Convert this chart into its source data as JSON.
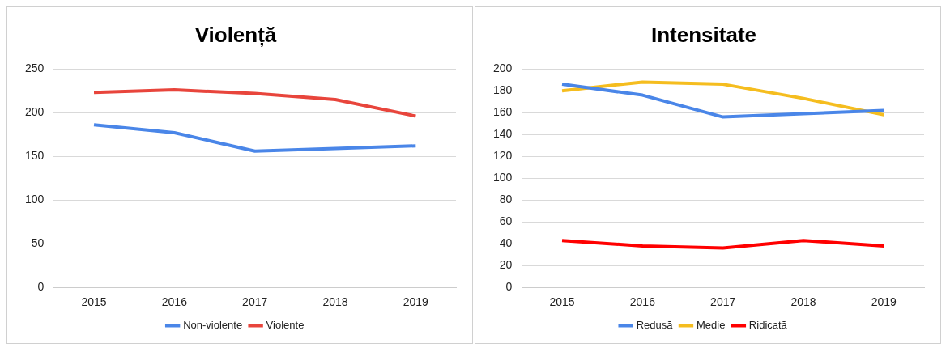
{
  "chart_data": [
    {
      "type": "line",
      "title": "Violență",
      "categories": [
        "2015",
        "2016",
        "2017",
        "2018",
        "2019"
      ],
      "ylim": [
        0,
        250
      ],
      "yticks": [
        0,
        50,
        100,
        150,
        200,
        250
      ],
      "grid": "y",
      "legend": "bottom",
      "marker": "none",
      "series": [
        {
          "name": "Non-violente",
          "color": "#4a86e8",
          "values": [
            186,
            177,
            156,
            159,
            162
          ]
        },
        {
          "name": "Violente",
          "color": "#e8453c",
          "values": [
            223,
            226,
            222,
            215,
            196
          ]
        }
      ]
    },
    {
      "type": "line",
      "title": "Intensitate",
      "categories": [
        "2015",
        "2016",
        "2017",
        "2018",
        "2019"
      ],
      "ylim": [
        0,
        200
      ],
      "yticks": [
        0,
        20,
        40,
        60,
        80,
        100,
        120,
        140,
        160,
        180,
        200
      ],
      "grid": "y",
      "legend": "bottom",
      "marker": "none",
      "series": [
        {
          "name": "Redusă",
          "color": "#4a86e8",
          "values": [
            186,
            176,
            156,
            159,
            162
          ]
        },
        {
          "name": "Medie",
          "color": "#f5bd1f",
          "values": [
            180,
            188,
            186,
            173,
            158
          ]
        },
        {
          "name": "Ridicată",
          "color": "#ff0000",
          "values": [
            43,
            38,
            36,
            43,
            38
          ]
        }
      ]
    }
  ]
}
